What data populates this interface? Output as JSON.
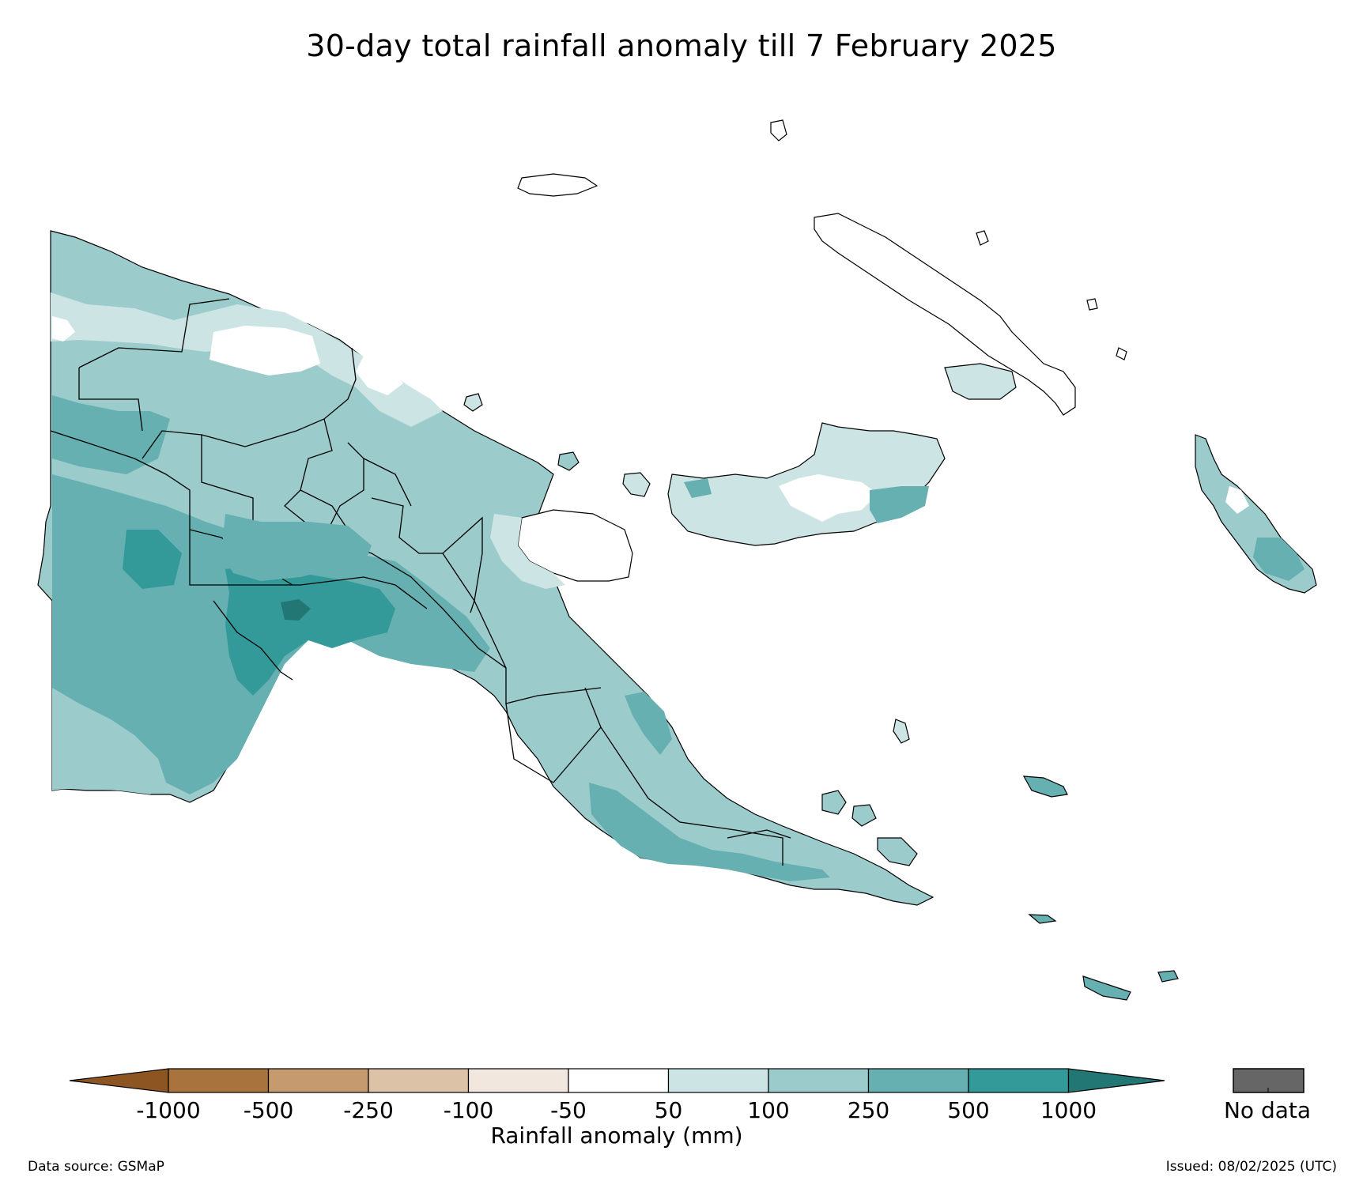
{
  "title": "30-day total rainfall anomaly till 7 February 2025",
  "legend": {
    "label": "Rainfall anomaly (mm)",
    "ticks": [
      "-1000",
      "-500",
      "-250",
      "-100",
      "-50",
      "50",
      "100",
      "250",
      "500",
      "1000"
    ],
    "bins": [
      {
        "range": "< -1000",
        "color": "#8c5522"
      },
      {
        "range": "-1000 to -500",
        "color": "#a8733d"
      },
      {
        "range": "-500 to -250",
        "color": "#c49a6e"
      },
      {
        "range": "-250 to -100",
        "color": "#dcc3a8"
      },
      {
        "range": "-100 to -50",
        "color": "#f1e7df"
      },
      {
        "range": "-50 to 50",
        "color": "#ffffff"
      },
      {
        "range": "50 to 100",
        "color": "#cce5e4"
      },
      {
        "range": "100 to 250",
        "color": "#9ccbcc"
      },
      {
        "range": "250 to 500",
        "color": "#66b0b1"
      },
      {
        "range": "500 to 1000",
        "color": "#339a99"
      },
      {
        "range": "> 1000",
        "color": "#227775"
      }
    ],
    "nodata": {
      "label": "No data",
      "color": "#666666"
    }
  },
  "footer": {
    "source": "Data source: GSMaP",
    "issued": "Issued: 08/02/2025 (UTC)"
  }
}
